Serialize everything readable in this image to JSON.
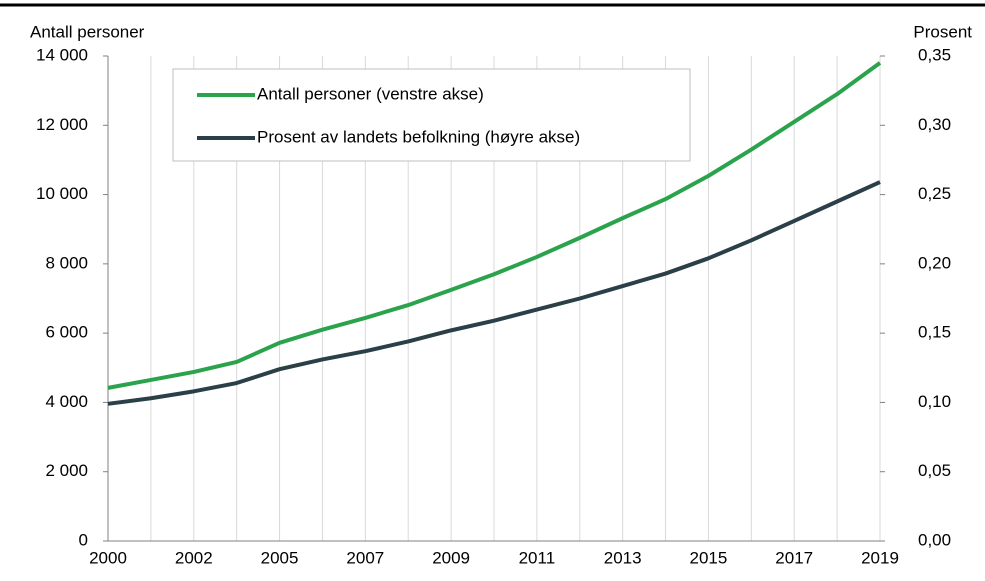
{
  "chart_data": {
    "type": "line",
    "y_label": "Antall personer",
    "y2_label": "Prosent",
    "categories": [
      "2000",
      null,
      "2002",
      null,
      "2005",
      null,
      "2007",
      null,
      "2009",
      null,
      "2011",
      null,
      "2013",
      null,
      "2015",
      null,
      "2017",
      null,
      "2019"
    ],
    "series": [
      {
        "name": "Antall personer (venstre akse)",
        "color": "#2ba24c",
        "values": [
          4420,
          4650,
          4880,
          5170,
          5720,
          6100,
          6440,
          6810,
          7250,
          7700,
          8200,
          8750,
          9320,
          9870,
          10540,
          11300,
          12100,
          12900,
          13800
        ]
      },
      {
        "name": "Prosent av landets befolkning (høyre akse)",
        "color": "#2a3f47",
        "axis": "y2",
        "values": [
          0.099,
          0.103,
          0.108,
          0.114,
          0.124,
          0.131,
          0.137,
          0.144,
          0.152,
          0.159,
          0.167,
          0.175,
          0.184,
          0.193,
          0.204,
          0.217,
          0.231,
          0.245,
          0.259
        ]
      }
    ],
    "ylim": [
      0,
      14000
    ],
    "yticks": [
      0,
      {
        "value": 2000,
        "label": "2 000"
      },
      {
        "value": 4000,
        "label": "4 000"
      },
      {
        "value": 6000,
        "label": "6 000"
      },
      {
        "value": 8000,
        "label": "8 000"
      },
      {
        "value": 10000,
        "label": "10 000"
      },
      {
        "value": 12000,
        "label": "12 000"
      },
      {
        "value": 14000,
        "label": "14 000"
      }
    ],
    "y2lim": [
      0,
      0.35
    ],
    "y2ticks": [
      {
        "value": 0,
        "label": "0,00"
      },
      {
        "value": 0.05,
        "label": "0,05"
      },
      {
        "value": 0.1,
        "label": "0,10"
      },
      {
        "value": 0.15,
        "label": "0,15"
      },
      {
        "value": 0.2,
        "label": "0,20"
      },
      {
        "value": 0.25,
        "label": "0,25"
      },
      {
        "value": 0.3,
        "label": "0,30"
      },
      {
        "value": 0.35,
        "label": "0,35"
      }
    ],
    "grid": "x",
    "legend": "top-left"
  }
}
